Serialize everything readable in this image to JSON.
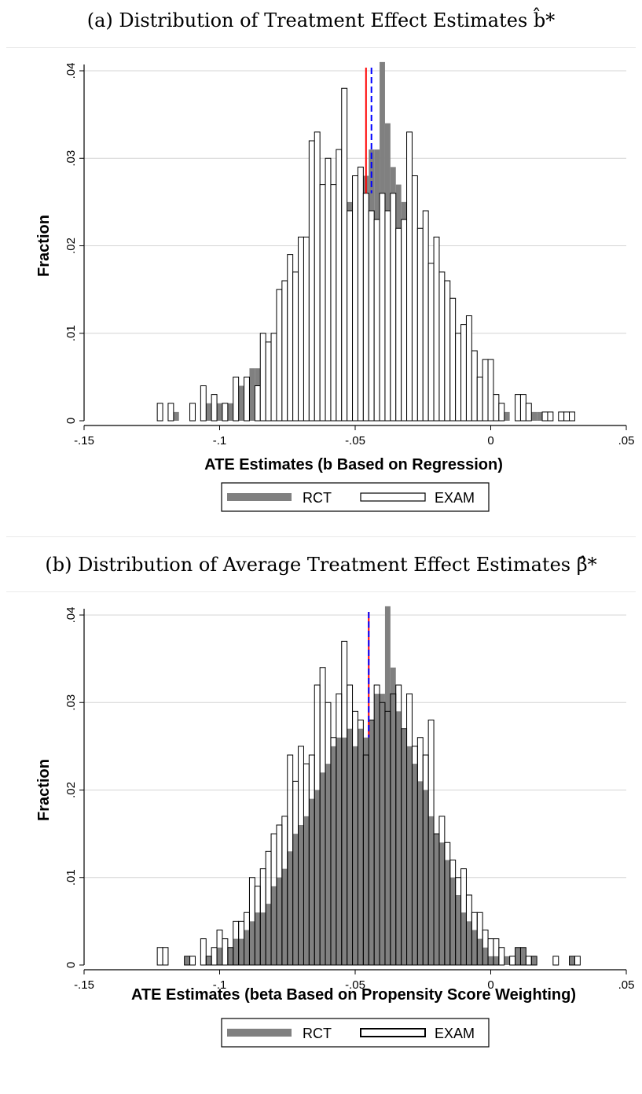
{
  "panels": [
    {
      "caption": "(a) Distribution of Treatment Effect Estimates b̂*",
      "chart_data": {
        "type": "bar",
        "ylabel": "Fraction",
        "xlabel": "ATE Estimates (b Based on Regression)",
        "xlim": [
          -0.15,
          0.05
        ],
        "ylim": [
          0,
          0.04
        ],
        "xticks": [
          "-.15",
          "-.1",
          "-.05",
          "0",
          ".05"
        ],
        "xtick_values": [
          -0.15,
          -0.1,
          -0.05,
          0,
          0.05
        ],
        "yticks": [
          "0",
          ".01",
          ".02",
          ".03",
          ".04"
        ],
        "ytick_values": [
          0,
          0.01,
          0.02,
          0.03,
          0.04
        ],
        "grid": true,
        "legend_position": "bottom",
        "bin_width": 0.002,
        "series": [
          {
            "name": "RCT",
            "style": "filled",
            "color": "#808080",
            "x": [
              -0.116,
              -0.106,
              -0.104,
              -0.1,
              -0.096,
              -0.094,
              -0.092,
              -0.09,
              -0.088,
              -0.086,
              -0.084,
              -0.082,
              -0.08,
              -0.078,
              -0.076,
              -0.074,
              -0.072,
              -0.07,
              -0.068,
              -0.066,
              -0.064,
              -0.062,
              -0.06,
              -0.058,
              -0.056,
              -0.054,
              -0.052,
              -0.05,
              -0.048,
              -0.046,
              -0.044,
              -0.042,
              -0.04,
              -0.038,
              -0.036,
              -0.034,
              -0.032,
              -0.03,
              -0.028,
              -0.026,
              -0.024,
              -0.022,
              -0.02,
              -0.018,
              -0.016,
              -0.014,
              -0.012,
              -0.01,
              -0.008,
              -0.006,
              -0.004,
              -0.002,
              0.0,
              0.002,
              0.004,
              0.006,
              0.01,
              0.012,
              0.016,
              0.018,
              0.03
            ],
            "values": [
              0.001,
              0.001,
              0.002,
              0.002,
              0.002,
              0.003,
              0.004,
              0.005,
              0.006,
              0.006,
              0.007,
              0.009,
              0.01,
              0.011,
              0.013,
              0.015,
              0.016,
              0.017,
              0.019,
              0.02,
              0.022,
              0.023,
              0.025,
              0.026,
              0.026,
              0.027,
              0.025,
              0.027,
              0.026,
              0.028,
              0.031,
              0.031,
              0.041,
              0.034,
              0.029,
              0.027,
              0.025,
              0.023,
              0.021,
              0.02,
              0.017,
              0.015,
              0.014,
              0.012,
              0.01,
              0.008,
              0.006,
              0.005,
              0.004,
              0.003,
              0.002,
              0.001,
              0.001,
              0.001,
              0.001,
              0.001,
              0.002,
              0.002,
              0.001,
              0.001,
              0.001
            ]
          },
          {
            "name": "EXAM",
            "style": "outline",
            "color": "#ffffff",
            "x": [
              -0.122,
              -0.118,
              -0.11,
              -0.106,
              -0.102,
              -0.098,
              -0.094,
              -0.09,
              -0.086,
              -0.084,
              -0.082,
              -0.08,
              -0.078,
              -0.076,
              -0.074,
              -0.072,
              -0.07,
              -0.068,
              -0.066,
              -0.064,
              -0.062,
              -0.06,
              -0.058,
              -0.056,
              -0.054,
              -0.052,
              -0.05,
              -0.048,
              -0.046,
              -0.044,
              -0.042,
              -0.04,
              -0.038,
              -0.036,
              -0.034,
              -0.032,
              -0.03,
              -0.028,
              -0.026,
              -0.024,
              -0.022,
              -0.02,
              -0.018,
              -0.016,
              -0.014,
              -0.012,
              -0.01,
              -0.008,
              -0.006,
              -0.004,
              -0.002,
              0.0,
              0.002,
              0.004,
              0.01,
              0.012,
              0.014,
              0.02,
              0.022,
              0.026,
              0.028,
              0.03
            ],
            "values": [
              0.002,
              0.002,
              0.002,
              0.004,
              0.003,
              0.002,
              0.005,
              0.005,
              0.004,
              0.01,
              0.009,
              0.01,
              0.015,
              0.016,
              0.019,
              0.017,
              0.021,
              0.021,
              0.032,
              0.033,
              0.027,
              0.03,
              0.027,
              0.031,
              0.038,
              0.024,
              0.028,
              0.029,
              0.026,
              0.024,
              0.023,
              0.026,
              0.024,
              0.026,
              0.022,
              0.023,
              0.033,
              0.028,
              0.022,
              0.024,
              0.018,
              0.021,
              0.017,
              0.016,
              0.014,
              0.01,
              0.011,
              0.012,
              0.008,
              0.005,
              0.007,
              0.007,
              0.003,
              0.002,
              0.003,
              0.003,
              0.002,
              0.001,
              0.001,
              0.001,
              0.001,
              0.001
            ]
          }
        ],
        "reference_lines": [
          {
            "x": -0.046,
            "color": "#ff0000",
            "style": "solid"
          },
          {
            "x": -0.044,
            "color": "#0000ff",
            "style": "dashed"
          }
        ]
      },
      "legend": [
        {
          "label": "RCT",
          "swatch": "filled"
        },
        {
          "label": "EXAM",
          "swatch": "outline"
        }
      ]
    },
    {
      "caption": "(b) Distribution of Average Treatment Effect Estimates β̂*",
      "chart_data": {
        "type": "bar",
        "ylabel": "Fraction",
        "xlabel": "ATE Estimates (beta Based on Propensity Score Weighting)",
        "xlim": [
          -0.15,
          0.05
        ],
        "ylim": [
          0,
          0.04
        ],
        "xticks": [
          "-.15",
          "-.1",
          "-.05",
          "0",
          ".05"
        ],
        "xtick_values": [
          -0.15,
          -0.1,
          -0.05,
          0,
          0.05
        ],
        "yticks": [
          "0",
          ".01",
          ".02",
          ".03",
          ".04"
        ],
        "ytick_values": [
          0,
          0.01,
          0.02,
          0.03,
          0.04
        ],
        "grid": true,
        "legend_position": "bottom",
        "bin_width": 0.002,
        "series": [
          {
            "name": "RCT",
            "style": "filled",
            "color": "#808080",
            "x": [
              -0.112,
              -0.104,
              -0.1,
              -0.096,
              -0.094,
              -0.092,
              -0.09,
              -0.088,
              -0.086,
              -0.084,
              -0.082,
              -0.08,
              -0.078,
              -0.076,
              -0.074,
              -0.072,
              -0.07,
              -0.068,
              -0.066,
              -0.064,
              -0.062,
              -0.06,
              -0.058,
              -0.056,
              -0.054,
              -0.052,
              -0.05,
              -0.048,
              -0.046,
              -0.044,
              -0.042,
              -0.04,
              -0.038,
              -0.036,
              -0.034,
              -0.032,
              -0.03,
              -0.028,
              -0.026,
              -0.024,
              -0.022,
              -0.02,
              -0.018,
              -0.016,
              -0.014,
              -0.012,
              -0.01,
              -0.008,
              -0.006,
              -0.004,
              -0.002,
              0.0,
              0.002,
              0.006,
              0.01,
              0.012,
              0.016,
              0.03
            ],
            "values": [
              0.001,
              0.001,
              0.002,
              0.002,
              0.003,
              0.003,
              0.004,
              0.005,
              0.006,
              0.006,
              0.007,
              0.009,
              0.01,
              0.011,
              0.013,
              0.015,
              0.016,
              0.017,
              0.019,
              0.02,
              0.022,
              0.023,
              0.025,
              0.026,
              0.026,
              0.027,
              0.025,
              0.027,
              0.026,
              0.028,
              0.031,
              0.031,
              0.041,
              0.034,
              0.029,
              0.027,
              0.025,
              0.023,
              0.021,
              0.02,
              0.017,
              0.015,
              0.014,
              0.012,
              0.01,
              0.008,
              0.006,
              0.005,
              0.004,
              0.003,
              0.002,
              0.001,
              0.001,
              0.001,
              0.002,
              0.002,
              0.001,
              0.001
            ]
          },
          {
            "name": "EXAM",
            "style": "outline",
            "color": "#ffffff",
            "x": [
              -0.122,
              -0.12,
              -0.112,
              -0.11,
              -0.106,
              -0.104,
              -0.102,
              -0.1,
              -0.098,
              -0.096,
              -0.094,
              -0.092,
              -0.09,
              -0.088,
              -0.086,
              -0.084,
              -0.082,
              -0.08,
              -0.078,
              -0.076,
              -0.074,
              -0.072,
              -0.07,
              -0.068,
              -0.066,
              -0.064,
              -0.062,
              -0.06,
              -0.058,
              -0.056,
              -0.054,
              -0.052,
              -0.05,
              -0.048,
              -0.046,
              -0.044,
              -0.042,
              -0.04,
              -0.038,
              -0.036,
              -0.034,
              -0.032,
              -0.03,
              -0.028,
              -0.026,
              -0.024,
              -0.022,
              -0.02,
              -0.018,
              -0.016,
              -0.014,
              -0.012,
              -0.01,
              -0.008,
              -0.006,
              -0.004,
              -0.002,
              0.0,
              0.002,
              0.004,
              0.008,
              0.01,
              0.012,
              0.014,
              0.016,
              0.024,
              0.03,
              0.032
            ],
            "values": [
              0.002,
              0.002,
              0.001,
              0.001,
              0.003,
              0.001,
              0.002,
              0.004,
              0.003,
              0.002,
              0.005,
              0.005,
              0.006,
              0.01,
              0.009,
              0.011,
              0.013,
              0.015,
              0.016,
              0.017,
              0.024,
              0.021,
              0.025,
              0.023,
              0.024,
              0.032,
              0.034,
              0.03,
              0.026,
              0.031,
              0.037,
              0.032,
              0.029,
              0.028,
              0.024,
              0.028,
              0.032,
              0.03,
              0.029,
              0.031,
              0.032,
              0.027,
              0.031,
              0.025,
              0.026,
              0.024,
              0.028,
              0.015,
              0.017,
              0.014,
              0.012,
              0.01,
              0.011,
              0.008,
              0.006,
              0.006,
              0.004,
              0.003,
              0.003,
              0.002,
              0.001,
              0.002,
              0.002,
              0.001,
              0.001,
              0.001,
              0.001,
              0.001
            ]
          }
        ],
        "reference_lines": [
          {
            "x": -0.045,
            "color": "#ff0000",
            "style": "solid"
          },
          {
            "x": -0.045,
            "color": "#0000ff",
            "style": "dashed"
          }
        ]
      },
      "legend": [
        {
          "label": "RCT",
          "swatch": "filled"
        },
        {
          "label": "EXAM",
          "swatch": "outline"
        }
      ]
    }
  ]
}
